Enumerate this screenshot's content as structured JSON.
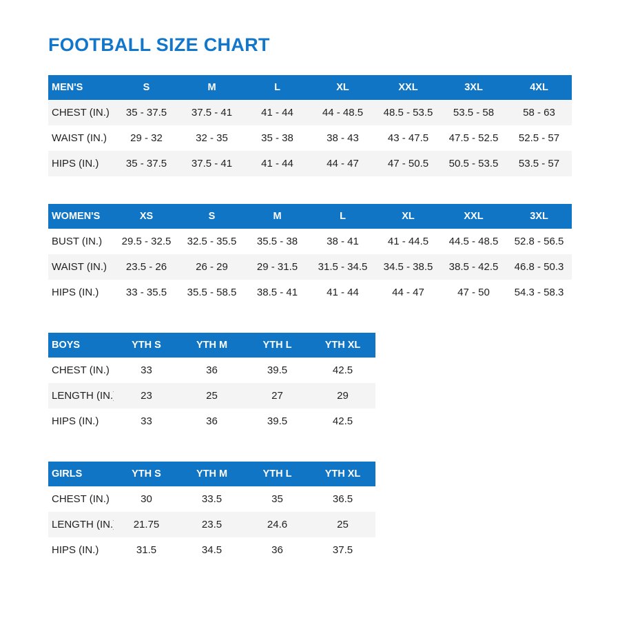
{
  "page": {
    "title": "FOOTBALL SIZE CHART"
  },
  "colors": {
    "title_text": "#1276CB",
    "table_header_bg": "#1175C5",
    "table_header_text": "#FFFFFF",
    "stripe_row_bg": "#F4F4F4",
    "body_text": "#1F1F1F",
    "page_bg": "#FFFFFF"
  },
  "chart_data": [
    {
      "type": "table",
      "id": "mens",
      "title": "MEN'S",
      "columns": [
        "MEN'S",
        "S",
        "M",
        "L",
        "XL",
        "XXL",
        "3XL",
        "4XL"
      ],
      "rows": [
        [
          "CHEST (IN.)",
          "35 - 37.5",
          "37.5 - 41",
          "41 - 44",
          "44 - 48.5",
          "48.5 - 53.5",
          "53.5 - 58",
          "58 - 63"
        ],
        [
          "WAIST (IN.)",
          "29 - 32",
          "32 - 35",
          "35 - 38",
          "38 - 43",
          "43 - 47.5",
          "47.5 - 52.5",
          "52.5 - 57"
        ],
        [
          "HIPS (IN.)",
          "35 - 37.5",
          "37.5 - 41",
          "41 - 44",
          "44 - 47",
          "47 - 50.5",
          "50.5 - 53.5",
          "53.5 - 57"
        ]
      ],
      "stripe_rows": [
        0,
        2
      ]
    },
    {
      "type": "table",
      "id": "womens",
      "title": "WOMEN'S",
      "columns": [
        "WOMEN'S",
        "XS",
        "S",
        "M",
        "L",
        "XL",
        "XXL",
        "3XL"
      ],
      "rows": [
        [
          "BUST (IN.)",
          "29.5 - 32.5",
          "32.5 - 35.5",
          "35.5 - 38",
          "38 - 41",
          "41 - 44.5",
          "44.5 - 48.5",
          "52.8 - 56.5"
        ],
        [
          "WAIST (IN.)",
          "23.5 - 26",
          "26 - 29",
          "29 - 31.5",
          "31.5 - 34.5",
          "34.5 - 38.5",
          "38.5 - 42.5",
          "46.8 - 50.3"
        ],
        [
          "HIPS (IN.)",
          "33 - 35.5",
          "35.5 - 58.5",
          "38.5 - 41",
          "41 - 44",
          "44 - 47",
          "47 - 50",
          "54.3 - 58.3"
        ]
      ],
      "stripe_rows": [
        1
      ]
    },
    {
      "type": "table",
      "id": "boys",
      "title": "BOYS",
      "columns": [
        "BOYS",
        "YTH S",
        "YTH M",
        "YTH L",
        "YTH XL"
      ],
      "rows": [
        [
          "CHEST (IN.)",
          "33",
          "36",
          "39.5",
          "42.5"
        ],
        [
          "LENGTH (IN.)",
          "23",
          "25",
          "27",
          "29"
        ],
        [
          "HIPS (IN.)",
          "33",
          "36",
          "39.5",
          "42.5"
        ]
      ],
      "stripe_rows": [
        1
      ]
    },
    {
      "type": "table",
      "id": "girls",
      "title": "GIRLS",
      "columns": [
        "GIRLS",
        "YTH S",
        "YTH M",
        "YTH L",
        "YTH XL"
      ],
      "rows": [
        [
          "CHEST (IN.)",
          "30",
          "33.5",
          "35",
          "36.5"
        ],
        [
          "LENGTH (IN.)",
          "21.75",
          "23.5",
          "24.6",
          "25"
        ],
        [
          "HIPS (IN.)",
          "31.5",
          "34.5",
          "36",
          "37.5"
        ]
      ],
      "stripe_rows": [
        1
      ]
    }
  ]
}
